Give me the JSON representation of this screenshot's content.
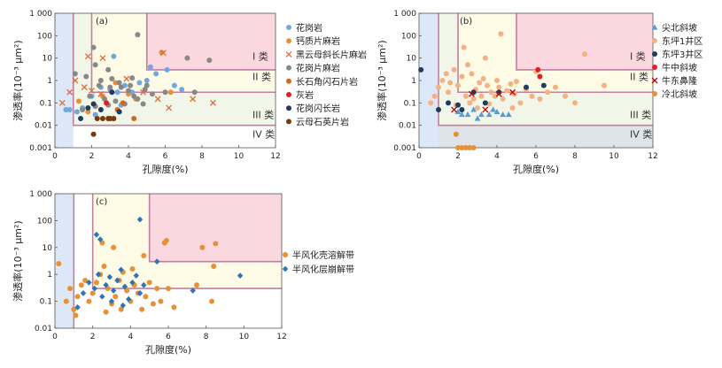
{
  "chart_data": [
    {
      "panel": "(a)",
      "type": "scatter",
      "xlabel": "孔隙度(%)",
      "ylabel": "渗透率(10⁻³ μm²)",
      "xlim": [
        0,
        12
      ],
      "ylim": [
        0.001,
        1000
      ],
      "yscale": "log",
      "x_ticks": [
        "0",
        "2",
        "4",
        "6",
        "8",
        "10",
        "12"
      ],
      "y_ticks": [
        "0.001",
        "0.01",
        "0.1",
        "1",
        "10",
        "100",
        "1 000"
      ],
      "class_labels": [
        "I 类",
        "II 类",
        "III 类",
        "IV 类"
      ],
      "series": [
        {
          "name": "花岗岩",
          "marker": "circle",
          "color": "#6fa8dc",
          "points": [
            [
              0.6,
              0.05
            ],
            [
              0.8,
              0.05
            ],
            [
              1.2,
              0.04
            ],
            [
              1.5,
              0.06
            ],
            [
              2.0,
              0.2
            ],
            [
              2.5,
              0.5
            ],
            [
              3.0,
              0.4
            ],
            [
              3.4,
              0.3
            ],
            [
              3.8,
              0.6
            ],
            [
              4.2,
              0.3
            ],
            [
              4.6,
              0.8
            ],
            [
              5.0,
              1.0
            ],
            [
              5.5,
              2.0
            ],
            [
              6.1,
              3.0
            ],
            [
              6.5,
              0.6
            ],
            [
              6.9,
              0.4
            ],
            [
              3.2,
              12
            ],
            [
              5.2,
              4.0
            ],
            [
              2.2,
              0.03
            ],
            [
              3.6,
              0.08
            ]
          ]
        },
        {
          "name": "钙质片麻岩",
          "marker": "circle",
          "color": "#e69138",
          "points": [
            [
              1.3,
              0.12
            ],
            [
              2.6,
              0.2
            ],
            [
              3.3,
              0.8
            ],
            [
              4.0,
              0.25
            ],
            [
              5.8,
              18
            ],
            [
              4.4,
              0.15
            ],
            [
              6.3,
              0.3
            ],
            [
              1.8,
              0.04
            ]
          ]
        },
        {
          "name": "黑云母斜长片麻岩",
          "marker": "x",
          "color": "#e06c3c",
          "points": [
            [
              0.4,
              0.1
            ],
            [
              0.8,
              0.3
            ],
            [
              1.1,
              1.0
            ],
            [
              1.6,
              0.5
            ],
            [
              2.0,
              0.35
            ],
            [
              2.5,
              0.25
            ],
            [
              1.8,
              12
            ],
            [
              2.6,
              10
            ],
            [
              5.6,
              0.15
            ],
            [
              5.9,
              17
            ],
            [
              6.2,
              0.06
            ],
            [
              7.5,
              0.15
            ],
            [
              8.6,
              0.1
            ],
            [
              4.8,
              0.3
            ],
            [
              3.9,
              1.2
            ]
          ]
        },
        {
          "name": "花岗片麻岩",
          "marker": "circle",
          "color": "#888888",
          "points": [
            [
              1.1,
              2.0
            ],
            [
              2.1,
              30
            ],
            [
              2.2,
              5.0
            ],
            [
              2.5,
              1.0
            ],
            [
              2.9,
              3.0
            ],
            [
              3.1,
              1.2
            ],
            [
              3.5,
              0.8
            ],
            [
              4.1,
              0.6
            ],
            [
              4.3,
              0.2
            ],
            [
              4.5,
              0.15
            ],
            [
              4.9,
              0.4
            ],
            [
              5.3,
              0.25
            ],
            [
              4.5,
              110
            ],
            [
              6.0,
              0.3
            ],
            [
              7.2,
              10
            ],
            [
              7.6,
              0.3
            ],
            [
              8.4,
              8
            ],
            [
              3.3,
              0.12
            ],
            [
              2.7,
              0.15
            ],
            [
              3.8,
              0.09
            ],
            [
              4.0,
              0.35
            ],
            [
              2.4,
              0.6
            ],
            [
              3.0,
              0.5
            ],
            [
              4.8,
              0.09
            ],
            [
              1.9,
              0.2
            ],
            [
              1.5,
              0.05
            ],
            [
              2.2,
              0.07
            ],
            [
              3.6,
              0.5
            ],
            [
              4.2,
              1.3
            ],
            [
              1.7,
              1.5
            ],
            [
              5.0,
              0.6
            ],
            [
              2.9,
              0.08
            ]
          ]
        },
        {
          "name": "长石角闪石片岩",
          "marker": "circle",
          "color": "#d2691e",
          "points": [
            [
              3.4,
              0.05
            ],
            [
              3.7,
              0.1
            ],
            [
              4.3,
              0.02
            ]
          ]
        },
        {
          "name": "灰岩",
          "marker": "circle",
          "color": "#e02020",
          "points": [
            [
              2.8,
              0.1
            ]
          ]
        },
        {
          "name": "花岗闪长岩",
          "marker": "circle",
          "color": "#1f3b5e",
          "points": [
            [
              1.8,
              0.06
            ],
            [
              2.5,
              0.05
            ],
            [
              3.1,
              0.3
            ],
            [
              3.5,
              0.04
            ],
            [
              2.1,
              0.09
            ],
            [
              1.4,
              0.02
            ]
          ]
        },
        {
          "name": "云母石英片岩",
          "marker": "circle",
          "color": "#7a3a10",
          "points": [
            [
              2.3,
              0.02
            ],
            [
              2.6,
              0.02
            ],
            [
              3.0,
              0.02
            ],
            [
              3.2,
              0.02
            ],
            [
              2.9,
              0.02
            ],
            [
              2.1,
              0.004
            ]
          ]
        }
      ]
    },
    {
      "panel": "(b)",
      "type": "scatter",
      "xlabel": "孔隙度(%)",
      "ylabel": "渗透率(10⁻³ μm²)",
      "xlim": [
        0,
        12
      ],
      "ylim": [
        0.001,
        1000
      ],
      "yscale": "log",
      "x_ticks": [
        "0",
        "2",
        "4",
        "6",
        "8",
        "10",
        "12"
      ],
      "y_ticks": [
        "0.001",
        "0.01",
        "0.1",
        "1",
        "10",
        "100",
        "1 000"
      ],
      "class_labels": [
        "I 类",
        "II 类",
        "III 类",
        "IV 类"
      ],
      "series": [
        {
          "name": "尖北斜坡",
          "marker": "triangle",
          "color": "#5b9bd5",
          "points": [
            [
              2.2,
              0.03
            ],
            [
              2.5,
              0.03
            ],
            [
              2.8,
              0.05
            ],
            [
              3.2,
              0.03
            ],
            [
              3.6,
              0.03
            ],
            [
              4.0,
              0.04
            ],
            [
              4.3,
              0.03
            ],
            [
              4.6,
              0.03
            ],
            [
              2.0,
              0.04
            ],
            [
              3.0,
              0.02
            ],
            [
              3.8,
              0.05
            ]
          ]
        },
        {
          "name": "东坪1井区",
          "marker": "circle",
          "color": "#f4b183",
          "points": [
            [
              0.6,
              0.1
            ],
            [
              0.8,
              0.2
            ],
            [
              1.0,
              0.5
            ],
            [
              1.2,
              1.0
            ],
            [
              1.4,
              2.0
            ],
            [
              1.6,
              0.8
            ],
            [
              1.8,
              3.0
            ],
            [
              2.0,
              0.6
            ],
            [
              2.2,
              1.5
            ],
            [
              2.3,
              30
            ],
            [
              2.5,
              5
            ],
            [
              2.7,
              2
            ],
            [
              2.9,
              0.4
            ],
            [
              3.1,
              0.8
            ],
            [
              3.3,
              1.2
            ],
            [
              3.5,
              0.6
            ],
            [
              3.7,
              0.3
            ],
            [
              3.9,
              0.2
            ],
            [
              4.1,
              0.5
            ],
            [
              4.3,
              0.15
            ],
            [
              4.5,
              0.35
            ],
            [
              4.7,
              0.7
            ],
            [
              4.9,
              0.25
            ],
            [
              5.2,
              0.1
            ],
            [
              5.5,
              0.4
            ],
            [
              5.8,
              0.2
            ],
            [
              6.2,
              0.15
            ],
            [
              6.6,
              0.3
            ],
            [
              7.0,
              0.5
            ],
            [
              7.5,
              0.2
            ],
            [
              8.0,
              0.1
            ],
            [
              8.5,
              15
            ],
            [
              9.5,
              0.6
            ],
            [
              4.2,
              120
            ],
            [
              3.4,
              10
            ],
            [
              2.6,
              0.1
            ],
            [
              3.0,
              0.06
            ],
            [
              3.6,
              0.09
            ],
            [
              1.9,
              0.08
            ],
            [
              2.4,
              0.2
            ],
            [
              1.5,
              0.3
            ],
            [
              4.8,
              0.06
            ],
            [
              5.0,
              0.9
            ],
            [
              6.0,
              2.5
            ],
            [
              2.8,
              0.15
            ],
            [
              3.2,
              0.2
            ],
            [
              4.0,
              1.0
            ]
          ]
        },
        {
          "name": "东坪3井区",
          "marker": "circle",
          "color": "#1f3b5e",
          "points": [
            [
              0.1,
              3.0
            ],
            [
              1.5,
              0.1
            ],
            [
              2.2,
              0.05
            ],
            [
              2.8,
              0.3
            ],
            [
              3.4,
              0.1
            ],
            [
              4.1,
              0.3
            ],
            [
              5.5,
              0.5
            ],
            [
              6.4,
              0.6
            ],
            [
              1.0,
              0.05
            ],
            [
              2.0,
              0.08
            ]
          ]
        },
        {
          "name": "牛中斜坡",
          "marker": "circle",
          "color": "#e02020",
          "points": [
            [
              6.1,
              3.0
            ],
            [
              6.2,
              1.5
            ]
          ]
        },
        {
          "name": "牛东鼻隆",
          "marker": "x",
          "color": "#c00000",
          "points": [
            [
              2.7,
              0.25
            ],
            [
              3.4,
              0.05
            ],
            [
              4.1,
              0.25
            ],
            [
              4.8,
              0.3
            ],
            [
              1.8,
              0.05
            ]
          ]
        },
        {
          "name": "冷北斜坡",
          "marker": "circle",
          "color": "#e69138",
          "points": [
            [
              1.9,
              0.004
            ],
            [
              2.0,
              0.001
            ],
            [
              2.2,
              0.001
            ],
            [
              2.4,
              0.001
            ],
            [
              2.6,
              0.001
            ],
            [
              2.8,
              0.001
            ]
          ]
        }
      ]
    },
    {
      "panel": "(c)",
      "type": "scatter",
      "xlabel": "孔隙度(%)",
      "ylabel": "渗透率(10⁻³ μm²)",
      "xlim": [
        0,
        12
      ],
      "ylim": [
        0.01,
        1000
      ],
      "yscale": "log",
      "x_ticks": [
        "0",
        "2",
        "4",
        "6",
        "8",
        "10",
        "12"
      ],
      "y_ticks": [
        "0.01",
        "0.1",
        "1",
        "10",
        "100",
        "1 000"
      ],
      "series": [
        {
          "name": "半风化壳溶解带",
          "marker": "circle",
          "color": "#e69138",
          "points": [
            [
              0.2,
              2.5
            ],
            [
              0.6,
              0.1
            ],
            [
              0.8,
              0.3
            ],
            [
              1.0,
              0.05
            ],
            [
              1.2,
              0.15
            ],
            [
              1.4,
              0.4
            ],
            [
              1.6,
              0.6
            ],
            [
              1.8,
              0.1
            ],
            [
              2.0,
              0.2
            ],
            [
              2.2,
              0.5
            ],
            [
              2.4,
              1.0
            ],
            [
              2.6,
              2.0
            ],
            [
              2.8,
              0.3
            ],
            [
              3.0,
              0.08
            ],
            [
              3.2,
              0.15
            ],
            [
              3.4,
              0.6
            ],
            [
              3.6,
              1.2
            ],
            [
              3.8,
              0.25
            ],
            [
              4.0,
              0.1
            ],
            [
              4.2,
              0.4
            ],
            [
              4.4,
              0.2
            ],
            [
              4.6,
              0.05
            ],
            [
              4.8,
              0.15
            ],
            [
              5.0,
              0.5
            ],
            [
              5.2,
              0.08
            ],
            [
              5.4,
              0.3
            ],
            [
              5.6,
              0.1
            ],
            [
              5.8,
              15
            ],
            [
              5.9,
              18
            ],
            [
              6.0,
              0.3
            ],
            [
              6.3,
              0.06
            ],
            [
              7.5,
              0.4
            ],
            [
              7.8,
              10
            ],
            [
              8.3,
              0.1
            ],
            [
              8.5,
              14
            ],
            [
              8.4,
              2.0
            ],
            [
              2.5,
              15
            ],
            [
              3.1,
              10
            ],
            [
              4.7,
              5
            ],
            [
              1.1,
              0.03
            ],
            [
              2.7,
              0.04
            ],
            [
              3.5,
              0.05
            ],
            [
              4.1,
              1.6
            ]
          ]
        },
        {
          "name": "半风化层崩解带",
          "marker": "diamond",
          "color": "#2e75b6",
          "points": [
            [
              1.2,
              0.06
            ],
            [
              1.5,
              0.2
            ],
            [
              1.8,
              0.5
            ],
            [
              2.1,
              0.3
            ],
            [
              2.3,
              1.0
            ],
            [
              2.5,
              0.15
            ],
            [
              2.7,
              0.4
            ],
            [
              2.9,
              0.8
            ],
            [
              3.1,
              0.25
            ],
            [
              3.3,
              0.6
            ],
            [
              3.5,
              1.5
            ],
            [
              3.7,
              0.35
            ],
            [
              3.9,
              0.12
            ],
            [
              4.1,
              0.5
            ],
            [
              4.3,
              0.9
            ],
            [
              4.5,
              0.2
            ],
            [
              4.7,
              0.4
            ],
            [
              4.5,
              110
            ],
            [
              2.2,
              30
            ],
            [
              2.4,
              20
            ],
            [
              5.4,
              3.0
            ],
            [
              7.3,
              0.25
            ],
            [
              9.8,
              0.9
            ],
            [
              3.0,
              0.1
            ],
            [
              3.6,
              0.07
            ]
          ]
        }
      ]
    }
  ]
}
